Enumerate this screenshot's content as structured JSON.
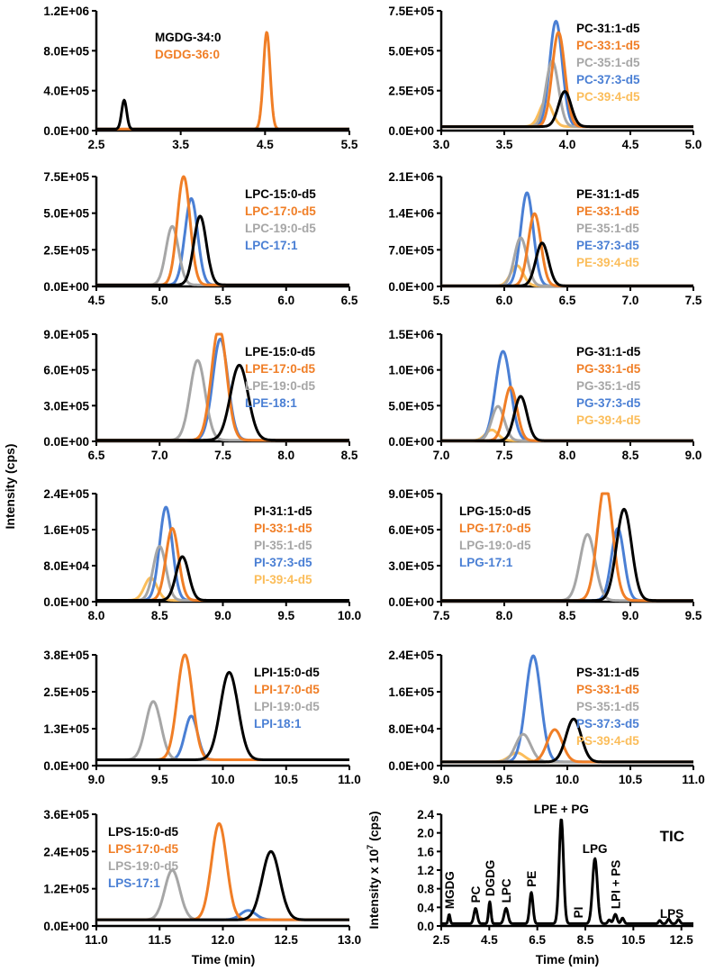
{
  "chart_data": {
    "type": "line",
    "ylabel": "Intensity (cps)",
    "xlabel": "Time (min)",
    "colors": {
      "black": "#000000",
      "orange": "#f07e26",
      "gray": "#a6a6a6",
      "blue": "#4a7fd4",
      "light_orange": "#fbbd5a"
    },
    "panels": [
      {
        "id": "mgdg",
        "xlim": [
          2.5,
          5.5
        ],
        "xticks": [
          "2.5",
          "3.5",
          "4.5",
          "5.5"
        ],
        "ylim": [
          0,
          1200000
        ],
        "yticks": [
          "0.0E+00",
          "4.0E+05",
          "8.0E+05",
          "1.2E+06"
        ],
        "baseline": 15000,
        "series": [
          {
            "name": "MGDG-34:0",
            "color": "black",
            "rt": 2.83,
            "height": 290000,
            "width": 0.03
          },
          {
            "name": "DGDG-36:0",
            "color": "orange",
            "rt": 4.52,
            "height": 970000,
            "width": 0.04
          }
        ]
      },
      {
        "id": "pc",
        "xlim": [
          3.0,
          5.0
        ],
        "xticks": [
          "3.0",
          "3.5",
          "4.0",
          "4.5",
          "5.0"
        ],
        "ylim": [
          0,
          750000
        ],
        "yticks": [
          "0.0E+00",
          "2.5E+05",
          "5.0E+05",
          "7.5E+05"
        ],
        "baseline": 25000,
        "series": [
          {
            "name": "PC-31:1-d5",
            "color": "black",
            "rt": 3.98,
            "height": 220000,
            "width": 0.05
          },
          {
            "name": "PC-33:1-d5",
            "color": "orange",
            "rt": 3.93,
            "height": 590000,
            "width": 0.05
          },
          {
            "name": "PC-35:1-d5",
            "color": "gray",
            "rt": 3.88,
            "height": 410000,
            "width": 0.05
          },
          {
            "name": "PC-37:3-d5",
            "color": "blue",
            "rt": 3.91,
            "height": 660000,
            "width": 0.05
          },
          {
            "name": "PC-39:4-d5",
            "color": "light_orange",
            "rt": 3.83,
            "height": 160000,
            "width": 0.05
          }
        ]
      },
      {
        "id": "lpc",
        "xlim": [
          4.5,
          6.5
        ],
        "xticks": [
          "4.5",
          "5.0",
          "5.5",
          "6.0",
          "6.5"
        ],
        "ylim": [
          0,
          750000
        ],
        "yticks": [
          "0.0E+00",
          "2.5E+05",
          "5.0E+05",
          "7.5E+05"
        ],
        "baseline": 10000,
        "series": [
          {
            "name": "LPC-15:0-d5",
            "color": "black",
            "rt": 5.32,
            "height": 470000,
            "width": 0.05
          },
          {
            "name": "LPC-17:0-d5",
            "color": "orange",
            "rt": 5.19,
            "height": 740000,
            "width": 0.05
          },
          {
            "name": "LPC-19:0-d5",
            "color": "gray",
            "rt": 5.1,
            "height": 400000,
            "width": 0.05
          },
          {
            "name": "LPC-17:1",
            "color": "blue",
            "rt": 5.25,
            "height": 590000,
            "width": 0.05
          }
        ]
      },
      {
        "id": "pe",
        "xlim": [
          5.5,
          7.5
        ],
        "xticks": [
          "5.5",
          "6.0",
          "6.5",
          "7.0",
          "7.5"
        ],
        "ylim": [
          0,
          2100000
        ],
        "yticks": [
          "0.0E+00",
          "7.0E+05",
          "1.4E+06",
          "2.1E+06"
        ],
        "baseline": 10000,
        "series": [
          {
            "name": "PE-31:1-d5",
            "color": "black",
            "rt": 6.3,
            "height": 820000,
            "width": 0.05
          },
          {
            "name": "PE-33:1-d5",
            "color": "orange",
            "rt": 6.24,
            "height": 1380000,
            "width": 0.05
          },
          {
            "name": "PE-35:1-d5",
            "color": "gray",
            "rt": 6.13,
            "height": 920000,
            "width": 0.05
          },
          {
            "name": "PE-37:3-d5",
            "color": "blue",
            "rt": 6.18,
            "height": 1780000,
            "width": 0.05
          },
          {
            "name": "PE-39:4-d5",
            "color": "light_orange",
            "rt": 6.1,
            "height": 390000,
            "width": 0.05
          }
        ]
      },
      {
        "id": "lpe",
        "xlim": [
          6.5,
          8.5
        ],
        "xticks": [
          "6.5",
          "7.0",
          "7.5",
          "8.0",
          "8.5"
        ],
        "ylim": [
          0,
          900000
        ],
        "yticks": [
          "0.0E+00",
          "3.0E+05",
          "6.0E+05",
          "9.0E+05"
        ],
        "baseline": 10000,
        "series": [
          {
            "name": "LPE-15:0-d5",
            "color": "black",
            "rt": 7.63,
            "height": 630000,
            "width": 0.07
          },
          {
            "name": "LPE-17:0-d5",
            "color": "orange",
            "rt": 7.47,
            "height": 950000,
            "width": 0.06
          },
          {
            "name": "LPE-19:0-d5",
            "color": "gray",
            "rt": 7.3,
            "height": 670000,
            "width": 0.06
          },
          {
            "name": "LPE-18:1",
            "color": "blue",
            "rt": 7.48,
            "height": 850000,
            "width": 0.06
          }
        ]
      },
      {
        "id": "pg",
        "xlim": [
          7.0,
          9.0
        ],
        "xticks": [
          "7.0",
          "7.5",
          "8.0",
          "8.5",
          "9.0"
        ],
        "ylim": [
          0,
          1500000
        ],
        "yticks": [
          "0.0E+00",
          "5.0E+05",
          "1.0E+06",
          "1.5E+06"
        ],
        "baseline": 10000,
        "series": [
          {
            "name": "PG-31:1-d5",
            "color": "black",
            "rt": 7.63,
            "height": 620000,
            "width": 0.05
          },
          {
            "name": "PG-33:1-d5",
            "color": "orange",
            "rt": 7.55,
            "height": 750000,
            "width": 0.05
          },
          {
            "name": "PG-35:1-d5",
            "color": "gray",
            "rt": 7.45,
            "height": 480000,
            "width": 0.05
          },
          {
            "name": "PG-37:3-d5",
            "color": "blue",
            "rt": 7.49,
            "height": 1250000,
            "width": 0.06
          },
          {
            "name": "PG-39:4-d5",
            "color": "light_orange",
            "rt": 7.4,
            "height": 150000,
            "width": 0.05
          }
        ]
      },
      {
        "id": "pi",
        "xlim": [
          8.0,
          10.0
        ],
        "xticks": [
          "8.0",
          "8.5",
          "9.0",
          "9.5",
          "10.0"
        ],
        "ylim": [
          0,
          240000
        ],
        "yticks": [
          "0.0E+00",
          "8.0E+04",
          "1.6E+05",
          "2.4E+05"
        ],
        "baseline": 3000,
        "series": [
          {
            "name": "PI-31:1-d5",
            "color": "black",
            "rt": 8.68,
            "height": 97000,
            "width": 0.05
          },
          {
            "name": "PI-33:1-d5",
            "color": "orange",
            "rt": 8.6,
            "height": 160000,
            "width": 0.05
          },
          {
            "name": "PI-35:1-d5",
            "color": "gray",
            "rt": 8.5,
            "height": 120000,
            "width": 0.05
          },
          {
            "name": "PI-37:3-d5",
            "color": "blue",
            "rt": 8.55,
            "height": 207000,
            "width": 0.05
          },
          {
            "name": "PI-39:4-d5",
            "color": "light_orange",
            "rt": 8.43,
            "height": 50000,
            "width": 0.05
          }
        ]
      },
      {
        "id": "lpg",
        "xlim": [
          7.5,
          9.5
        ],
        "xticks": [
          "7.5",
          "8.0",
          "8.5",
          "9.0",
          "9.5"
        ],
        "ylim": [
          0,
          900000
        ],
        "yticks": [
          "0.0E+00",
          "3.0E+05",
          "6.0E+05",
          "9.0E+05"
        ],
        "baseline": 10000,
        "series": [
          {
            "name": "LPG-15:0-d5",
            "color": "black",
            "rt": 8.95,
            "height": 760000,
            "width": 0.06
          },
          {
            "name": "LPG-17:0-d5",
            "color": "orange",
            "rt": 8.8,
            "height": 970000,
            "width": 0.06
          },
          {
            "name": "LPG-19:0-d5",
            "color": "gray",
            "rt": 8.66,
            "height": 550000,
            "width": 0.06
          },
          {
            "name": "LPG-17:1",
            "color": "blue",
            "rt": 8.9,
            "height": 600000,
            "width": 0.05
          }
        ]
      },
      {
        "id": "lpi",
        "xlim": [
          9.0,
          11.0
        ],
        "xticks": [
          "9.0",
          "9.5",
          "10.0",
          "10.5",
          "11.0"
        ],
        "ylim": [
          0,
          380000
        ],
        "yticks": [
          "0.0E+00",
          "1.3E+05",
          "2.5E+05",
          "3.8E+05"
        ],
        "baseline": 20000,
        "series": [
          {
            "name": "LPI-15:0-d5",
            "color": "black",
            "rt": 10.05,
            "height": 300000,
            "width": 0.07
          },
          {
            "name": "LPI-17:0-d5",
            "color": "orange",
            "rt": 9.7,
            "height": 360000,
            "width": 0.06
          },
          {
            "name": "LPI-19:0-d5",
            "color": "gray",
            "rt": 9.45,
            "height": 200000,
            "width": 0.06
          },
          {
            "name": "LPI-18:1",
            "color": "blue",
            "rt": 9.75,
            "height": 150000,
            "width": 0.05
          }
        ]
      },
      {
        "id": "ps",
        "xlim": [
          9.0,
          11.0
        ],
        "xticks": [
          "9.0",
          "9.5",
          "10.0",
          "10.5",
          "11.0"
        ],
        "ylim": [
          0,
          240000
        ],
        "yticks": [
          "0.0E+00",
          "8.0E+04",
          "1.6E+05",
          "2.4E+05"
        ],
        "baseline": 8000,
        "series": [
          {
            "name": "PS-31:1-d5",
            "color": "black",
            "rt": 10.05,
            "height": 93000,
            "width": 0.06
          },
          {
            "name": "PS-33:1-d5",
            "color": "orange",
            "rt": 9.9,
            "height": 70000,
            "width": 0.06
          },
          {
            "name": "PS-35:1-d5",
            "color": "gray",
            "rt": 9.65,
            "height": 60000,
            "width": 0.06
          },
          {
            "name": "PS-37:3-d5",
            "color": "blue",
            "rt": 9.73,
            "height": 230000,
            "width": 0.06
          },
          {
            "name": "PS-39:4-d5",
            "color": "light_orange",
            "rt": 9.6,
            "height": 20000,
            "width": 0.06
          }
        ]
      },
      {
        "id": "lps",
        "xlim": [
          11.0,
          13.0
        ],
        "xticks": [
          "11.0",
          "11.5",
          "12.0",
          "12.5",
          "13.0"
        ],
        "ylim": [
          0,
          360000
        ],
        "yticks": [
          "0.0E+00",
          "1.2E+05",
          "2.4E+05",
          "3.6E+05"
        ],
        "baseline": 20000,
        "series": [
          {
            "name": "LPS-15:0-d5",
            "color": "black",
            "rt": 12.38,
            "height": 220000,
            "width": 0.07
          },
          {
            "name": "LPS-17:0-d5",
            "color": "orange",
            "rt": 11.97,
            "height": 310000,
            "width": 0.06
          },
          {
            "name": "LPS-19:0-d5",
            "color": "gray",
            "rt": 11.6,
            "height": 160000,
            "width": 0.06
          },
          {
            "name": "LPS-17:1",
            "color": "blue",
            "rt": 12.2,
            "height": 30000,
            "width": 0.06
          }
        ]
      },
      {
        "id": "tic",
        "title": "TIC",
        "ylabel": "Intensity x 10",
        "ylabel_exp": "7",
        "ylabel_unit": " (cps)",
        "xlim": [
          2.5,
          13.0
        ],
        "xticks": [
          "2.5",
          "4.5",
          "6.5",
          "8.5",
          "10.5",
          "12.5"
        ],
        "ylim": [
          0,
          2.4
        ],
        "yticks": [
          "0.0",
          "0.4",
          "0.8",
          "1.2",
          "1.6",
          "2.0",
          "2.4"
        ],
        "baseline": 0.05,
        "series": [
          {
            "name": "TIC",
            "color": "black",
            "peaks": [
              [
                2.83,
                0.2,
                0.04
              ],
              [
                3.93,
                0.33,
                0.07
              ],
              [
                4.52,
                0.47,
                0.05
              ],
              [
                5.2,
                0.33,
                0.08
              ],
              [
                6.25,
                0.67,
                0.07
              ],
              [
                7.5,
                2.25,
                0.09
              ],
              [
                8.9,
                1.4,
                0.1
              ],
              [
                9.5,
                0.08,
                0.06
              ],
              [
                9.75,
                0.2,
                0.07
              ],
              [
                10.05,
                0.12,
                0.06
              ],
              [
                11.6,
                0.07,
                0.05
              ],
              [
                11.97,
                0.1,
                0.06
              ],
              [
                12.38,
                0.09,
                0.06
              ]
            ]
          }
        ],
        "annotations": [
          {
            "text": "MGDG",
            "x": 2.83,
            "rotated": true
          },
          {
            "text": "PC",
            "x": 3.93,
            "rotated": true
          },
          {
            "text": "DGDG",
            "x": 4.52,
            "rotated": true
          },
          {
            "text": "LPC",
            "x": 5.2,
            "rotated": true
          },
          {
            "text": "PE",
            "x": 6.25,
            "rotated": true
          },
          {
            "text": "LPE + PG",
            "x": 7.5,
            "rotated": false
          },
          {
            "text": "PI",
            "x": 8.2,
            "rotated": true
          },
          {
            "text": "LPG",
            "x": 8.9,
            "rotated": false
          },
          {
            "text": "LPI + PS",
            "x": 9.75,
            "rotated": true
          },
          {
            "text": "LPS",
            "x": 12.1,
            "rotated": false
          }
        ]
      }
    ]
  }
}
